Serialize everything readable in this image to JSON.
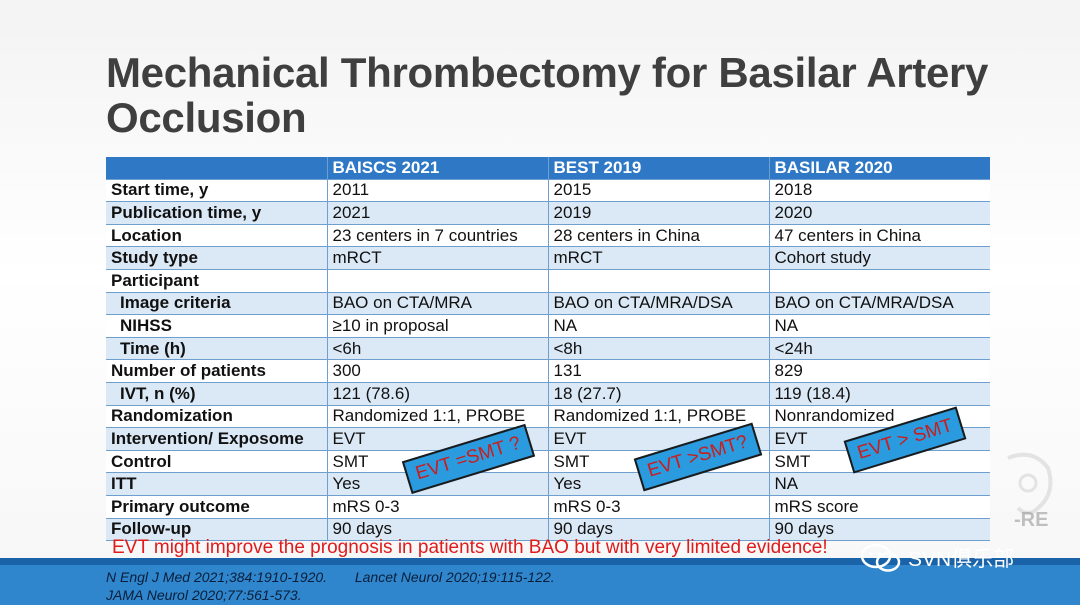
{
  "slide": {
    "title_line1": "Mechanical Thrombectomy for Basilar Artery",
    "title_line2": "Occlusion"
  },
  "table": {
    "headers": [
      "",
      "BAISCS 2021",
      "BEST 2019",
      "BASILAR 2020"
    ],
    "rows": [
      {
        "label": "Start time, y",
        "values": [
          "2011",
          "2015",
          "2018"
        ]
      },
      {
        "label": "Publication time, y",
        "values": [
          "2021",
          "2019",
          "2020"
        ]
      },
      {
        "label": "Location",
        "values": [
          "23 centers in 7 countries",
          "28 centers in China",
          "47 centers in China"
        ]
      },
      {
        "label": "Study type",
        "values": [
          "mRCT",
          "mRCT",
          "Cohort study"
        ]
      },
      {
        "label": "Participant",
        "values": [
          "",
          "",
          ""
        ]
      },
      {
        "label": "Image criteria",
        "values": [
          "BAO on CTA/MRA",
          "BAO on CTA/MRA/DSA",
          "BAO on CTA/MRA/DSA"
        ]
      },
      {
        "label": "NIHSS",
        "values": [
          "≥10 in proposal",
          "NA",
          "NA"
        ]
      },
      {
        "label": "Time (h)",
        "values": [
          "<6h",
          "<8h",
          "<24h"
        ]
      },
      {
        "label": "Number of patients",
        "values": [
          "300",
          "131",
          "829"
        ]
      },
      {
        "label": "IVT, n (%)",
        "values": [
          "121 (78.6)",
          "18 (27.7)",
          "119 (18.4)"
        ]
      },
      {
        "label": "Randomization",
        "values": [
          "Randomized 1:1, PROBE",
          "Randomized 1:1, PROBE",
          "Nonrandomized"
        ]
      },
      {
        "label": "Intervention/ Exposome",
        "values": [
          "EVT",
          "EVT",
          "EVT"
        ]
      },
      {
        "label": "Control",
        "values": [
          "SMT",
          "SMT",
          "SMT"
        ]
      },
      {
        "label": "ITT",
        "values": [
          "Yes",
          "Yes",
          "NA"
        ]
      },
      {
        "label": "Primary outcome",
        "values": [
          "mRS 0-3",
          "mRS 0-3",
          "mRS score"
        ]
      },
      {
        "label": "Follow-up",
        "values": [
          "90 days",
          "90 days",
          "90 days"
        ]
      }
    ]
  },
  "stamps": [
    "EVT =SMT ?",
    "EVT >SMT?",
    "EVT > SMT"
  ],
  "conclusion": "EVT might improve the prognosis in patients with BAO but with very limited evidence!",
  "references": {
    "ref1_journal": "N Engl J Med",
    "ref1_citation": "2021;384:1910-1920.",
    "ref2_journal": "Lancet Neurol",
    "ref2_citation": "2020;19:115-122.",
    "ref3_journal": "JAMA Neurol",
    "ref3_citation": "2020;77:561-573."
  },
  "watermark": {
    "text": "SVN俱乐部",
    "icon": "wechat-icon"
  },
  "logo_fragment_text": "-RE"
}
